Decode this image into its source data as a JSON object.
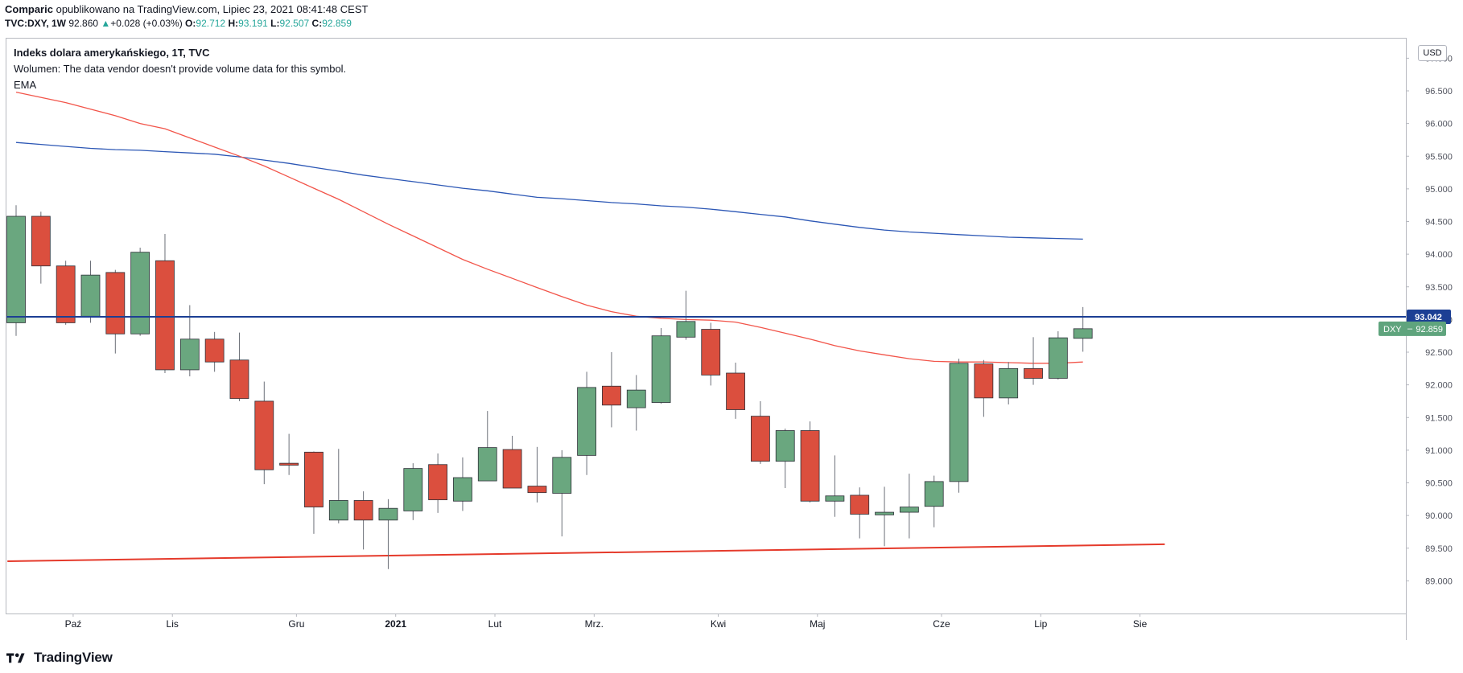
{
  "header": {
    "author": "Comparic",
    "published": "opublikowano na TradingView.com, Lipiec 23, 2021 08:41:48 CEST",
    "symbol": "TVC:DXY, 1W",
    "last": "92.860",
    "change": "+0.028 (+0.03%)",
    "open_label": "O:",
    "open": "92.712",
    "high_label": "H:",
    "high": "93.191",
    "low_label": "L:",
    "low": "92.507",
    "close_label": "C:",
    "close": "92.859"
  },
  "legend": {
    "title": "Indeks dolara amerykańskiego, 1T, TVC",
    "volume": "Wolumen: The data vendor doesn't provide volume data for this symbol.",
    "indicator": "EMA"
  },
  "currency": "USD",
  "brand": "TradingView",
  "colors": {
    "bull": "#6aa77f",
    "bear": "#db4f3e",
    "ema_fast": "#f2554a",
    "ema_slow": "#2c57b5",
    "hline": "#1c3f94",
    "trendline": "#e53a2b",
    "price_tag": "#5fa47d"
  },
  "chart_data": {
    "type": "candlestick",
    "timeframe": "1W",
    "ylim": [
      88.5,
      97.3
    ],
    "y_ticks": [
      89.0,
      89.5,
      90.0,
      90.5,
      91.0,
      91.5,
      92.0,
      92.5,
      93.0,
      93.5,
      94.0,
      94.5,
      95.0,
      95.5,
      96.0,
      96.5,
      97.0
    ],
    "y_tick_labels": [
      "89.000",
      "89.500",
      "90.000",
      "90.500",
      "91.000",
      "91.500",
      "92.000",
      "92.500",
      "93.000",
      "93.500",
      "94.000",
      "94.500",
      "95.000",
      "95.500",
      "96.000",
      "96.500",
      "97.000"
    ],
    "x_labels": [
      {
        "label": "Paź",
        "index": 2.3
      },
      {
        "label": "Lis",
        "index": 6.3
      },
      {
        "label": "Gru",
        "index": 11.3
      },
      {
        "label": "2021",
        "index": 15.3,
        "bold": true
      },
      {
        "label": "Lut",
        "index": 19.3
      },
      {
        "label": "Mrz.",
        "index": 23.3
      },
      {
        "label": "Kwi",
        "index": 28.3
      },
      {
        "label": "Maj",
        "index": 32.3
      },
      {
        "label": "Cze",
        "index": 37.3
      },
      {
        "label": "Lip",
        "index": 41.3
      },
      {
        "label": "Sie",
        "index": 45.3
      }
    ],
    "candles": [
      {
        "o": 92.95,
        "h": 94.75,
        "l": 92.75,
        "c": 94.58
      },
      {
        "o": 94.58,
        "h": 94.65,
        "l": 93.55,
        "c": 93.82
      },
      {
        "o": 93.82,
        "h": 93.9,
        "l": 92.92,
        "c": 92.95
      },
      {
        "o": 93.05,
        "h": 93.9,
        "l": 92.95,
        "c": 93.68
      },
      {
        "o": 93.72,
        "h": 93.76,
        "l": 92.48,
        "c": 92.78
      },
      {
        "o": 92.78,
        "h": 94.1,
        "l": 92.75,
        "c": 94.03
      },
      {
        "o": 93.9,
        "h": 94.31,
        "l": 92.18,
        "c": 92.23
      },
      {
        "o": 92.23,
        "h": 93.22,
        "l": 92.13,
        "c": 92.7
      },
      {
        "o": 92.7,
        "h": 92.81,
        "l": 92.2,
        "c": 92.35
      },
      {
        "o": 92.38,
        "h": 92.8,
        "l": 91.75,
        "c": 91.79
      },
      {
        "o": 91.75,
        "h": 92.05,
        "l": 90.48,
        "c": 90.7
      },
      {
        "o": 90.8,
        "h": 91.25,
        "l": 90.62,
        "c": 90.77
      },
      {
        "o": 90.97,
        "h": 90.98,
        "l": 89.72,
        "c": 90.13
      },
      {
        "o": 89.93,
        "h": 91.02,
        "l": 89.88,
        "c": 90.23
      },
      {
        "o": 90.23,
        "h": 90.37,
        "l": 89.48,
        "c": 89.93
      },
      {
        "o": 89.93,
        "h": 90.25,
        "l": 89.18,
        "c": 90.11
      },
      {
        "o": 90.07,
        "h": 90.8,
        "l": 89.93,
        "c": 90.72
      },
      {
        "o": 90.78,
        "h": 90.95,
        "l": 90.04,
        "c": 90.24
      },
      {
        "o": 90.22,
        "h": 90.89,
        "l": 90.07,
        "c": 90.58
      },
      {
        "o": 90.53,
        "h": 91.6,
        "l": 90.53,
        "c": 91.04
      },
      {
        "o": 91.01,
        "h": 91.22,
        "l": 90.43,
        "c": 90.42
      },
      {
        "o": 90.45,
        "h": 91.05,
        "l": 90.2,
        "c": 90.35
      },
      {
        "o": 90.34,
        "h": 91.0,
        "l": 89.68,
        "c": 90.89
      },
      {
        "o": 90.92,
        "h": 92.2,
        "l": 90.62,
        "c": 91.96
      },
      {
        "o": 91.98,
        "h": 92.5,
        "l": 91.35,
        "c": 91.69
      },
      {
        "o": 91.65,
        "h": 92.15,
        "l": 91.3,
        "c": 91.92
      },
      {
        "o": 91.73,
        "h": 92.87,
        "l": 91.71,
        "c": 92.75
      },
      {
        "o": 92.73,
        "h": 93.44,
        "l": 92.69,
        "c": 92.97
      },
      {
        "o": 92.85,
        "h": 92.95,
        "l": 91.99,
        "c": 92.15
      },
      {
        "o": 92.18,
        "h": 92.34,
        "l": 91.48,
        "c": 91.62
      },
      {
        "o": 91.52,
        "h": 91.75,
        "l": 90.79,
        "c": 90.83
      },
      {
        "o": 90.83,
        "h": 91.33,
        "l": 90.42,
        "c": 91.3
      },
      {
        "o": 91.3,
        "h": 91.44,
        "l": 90.2,
        "c": 90.22
      },
      {
        "o": 90.22,
        "h": 90.92,
        "l": 89.98,
        "c": 90.3
      },
      {
        "o": 90.31,
        "h": 90.43,
        "l": 89.65,
        "c": 90.02
      },
      {
        "o": 90.01,
        "h": 90.44,
        "l": 89.53,
        "c": 90.05
      },
      {
        "o": 90.05,
        "h": 90.64,
        "l": 89.65,
        "c": 90.13
      },
      {
        "o": 90.14,
        "h": 90.61,
        "l": 89.82,
        "c": 90.52
      },
      {
        "o": 90.52,
        "h": 92.4,
        "l": 90.35,
        "c": 92.33
      },
      {
        "o": 92.32,
        "h": 92.38,
        "l": 91.51,
        "c": 91.8
      },
      {
        "o": 91.8,
        "h": 92.35,
        "l": 91.7,
        "c": 92.25
      },
      {
        "o": 92.25,
        "h": 92.73,
        "l": 92.0,
        "c": 92.1
      },
      {
        "o": 92.1,
        "h": 92.82,
        "l": 92.08,
        "c": 92.72
      },
      {
        "o": 92.712,
        "h": 93.191,
        "l": 92.507,
        "c": 92.859
      }
    ],
    "ema_fast": [
      96.48,
      96.4,
      96.32,
      96.22,
      96.12,
      96.0,
      95.92,
      95.78,
      95.64,
      95.5,
      95.35,
      95.18,
      95.01,
      94.84,
      94.65,
      94.46,
      94.28,
      94.1,
      93.92,
      93.77,
      93.63,
      93.49,
      93.35,
      93.22,
      93.12,
      93.05,
      93.02,
      93.0,
      92.99,
      92.96,
      92.88,
      92.79,
      92.7,
      92.6,
      92.52,
      92.46,
      92.4,
      92.36,
      92.35,
      92.35,
      92.34,
      92.33,
      92.33,
      92.35
    ],
    "ema_slow": [
      95.71,
      95.68,
      95.65,
      95.62,
      95.6,
      95.59,
      95.57,
      95.55,
      95.53,
      95.49,
      95.44,
      95.39,
      95.33,
      95.27,
      95.21,
      95.16,
      95.11,
      95.06,
      95.01,
      94.97,
      94.92,
      94.87,
      94.85,
      94.82,
      94.79,
      94.77,
      94.74,
      94.72,
      94.69,
      94.65,
      94.61,
      94.57,
      94.51,
      94.46,
      94.41,
      94.37,
      94.34,
      94.32,
      94.3,
      94.28,
      94.26,
      94.25,
      94.24,
      94.23
    ],
    "horizontal_line": {
      "value": 93.042,
      "label": "93.042"
    },
    "trendline": {
      "from": {
        "index": -0.35,
        "value": 89.3
      },
      "to": {
        "index": 46.3,
        "value": 89.56
      }
    },
    "price_tag": {
      "symbol": "DXY",
      "value": 92.859,
      "label": "92.859"
    }
  }
}
